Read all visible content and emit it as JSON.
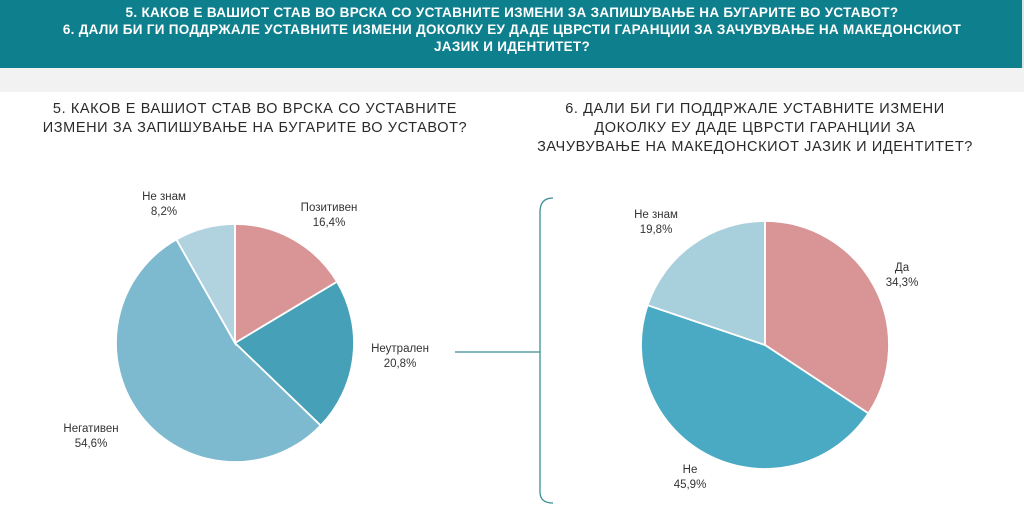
{
  "header": {
    "line1": "5. КАКОВ Е ВАШИОТ СТАВ ВО ВРСКА СО УСТАВНИТЕ ИЗМЕНИ ЗА ЗАПИШУВАЊЕ НА БУГАРИТЕ ВО УСТАВОТ?",
    "line2": "6. ДАЛИ БИ ГИ ПОДДРЖАЛЕ УСТАВНИТЕ ИЗМЕНИ ДОКОЛКУ ЕУ ДАДЕ ЦВРСТИ ГАРАНЦИИ ЗА ЗАЧУВУВАЊЕ НА МАКЕДОНСКИОТ",
    "line3": "ЈАЗИК И ИДЕНТИТЕТ?"
  },
  "chart_data": [
    {
      "type": "pie",
      "title_lines": [
        "5. КАКОВ Е ВАШИОТ СТАВ ВО ВРСКА СО УСТАВНИТЕ",
        "ИЗМЕНИ ЗА ЗАПИШУВАЊЕ НА БУГАРИТЕ ВО УСТАВОТ?"
      ],
      "slices": [
        {
          "label": "Позитивен",
          "value": 16.4,
          "display": "16,4%",
          "color": "#d99595"
        },
        {
          "label": "Неутрален",
          "value": 20.8,
          "display": "20,8%",
          "color": "#46a0b7"
        },
        {
          "label": "Негативен",
          "value": 54.6,
          "display": "54,6%",
          "color": "#7db9cf"
        },
        {
          "label": "Не знам",
          "value": 8.2,
          "display": "8,2%",
          "color": "#b1d3e0"
        }
      ]
    },
    {
      "type": "pie",
      "title_lines": [
        "6. ДАЛИ БИ ГИ ПОДДРЖАЛЕ УСТАВНИТЕ ИЗМЕНИ",
        "ДОКОЛКУ ЕУ ДАДЕ ЦВРСТИ ГАРАНЦИИ ЗА",
        "ЗАЧУВУВАЊЕ НА МАКЕДОНСКИОТ ЈАЗИК И ИДЕНТИТЕТ?"
      ],
      "slices": [
        {
          "label": "Да",
          "value": 34.3,
          "display": "34,3%",
          "color": "#d99595"
        },
        {
          "label": "Не",
          "value": 45.9,
          "display": "45,9%",
          "color": "#4aaac3"
        },
        {
          "label": "Не знам",
          "value": 19.8,
          "display": "19,8%",
          "color": "#a8cfdc"
        }
      ]
    }
  ]
}
